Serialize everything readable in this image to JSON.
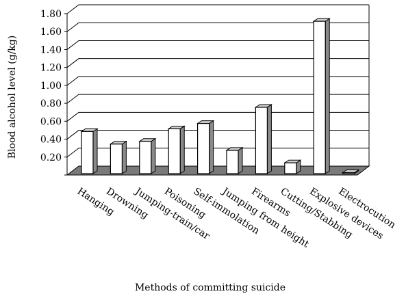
{
  "chart_data": {
    "type": "bar",
    "style": "3d-column",
    "title": "",
    "xlabel": "Methods of committing suicide",
    "ylabel": "Blood alcohol level (g/kg)",
    "ylim": [
      0,
      1.8
    ],
    "yticks": [
      "0.20",
      "0.40",
      "0.60",
      "0.80",
      "1.00",
      "1.20",
      "1.40",
      "1.60",
      "1.80"
    ],
    "grid": true,
    "legend": "none",
    "categories": [
      "Hanging",
      "Drowning",
      "Jumping-train/car",
      "Poisoning",
      "Self-immolation",
      "Jumping from height",
      "Firearms",
      "Cutting/Stabbing",
      "Explosive devices",
      "Electrocution"
    ],
    "values": [
      0.47,
      0.33,
      0.36,
      0.5,
      0.56,
      0.26,
      0.74,
      0.12,
      1.7,
      0.0
    ],
    "colors": {
      "bar_front": "#ffffff",
      "bar_side": "#8a8a8a",
      "bar_top": "#cfcfcf",
      "floor": "#7a7a7a",
      "grid": "#000000",
      "axis": "#000000"
    }
  }
}
